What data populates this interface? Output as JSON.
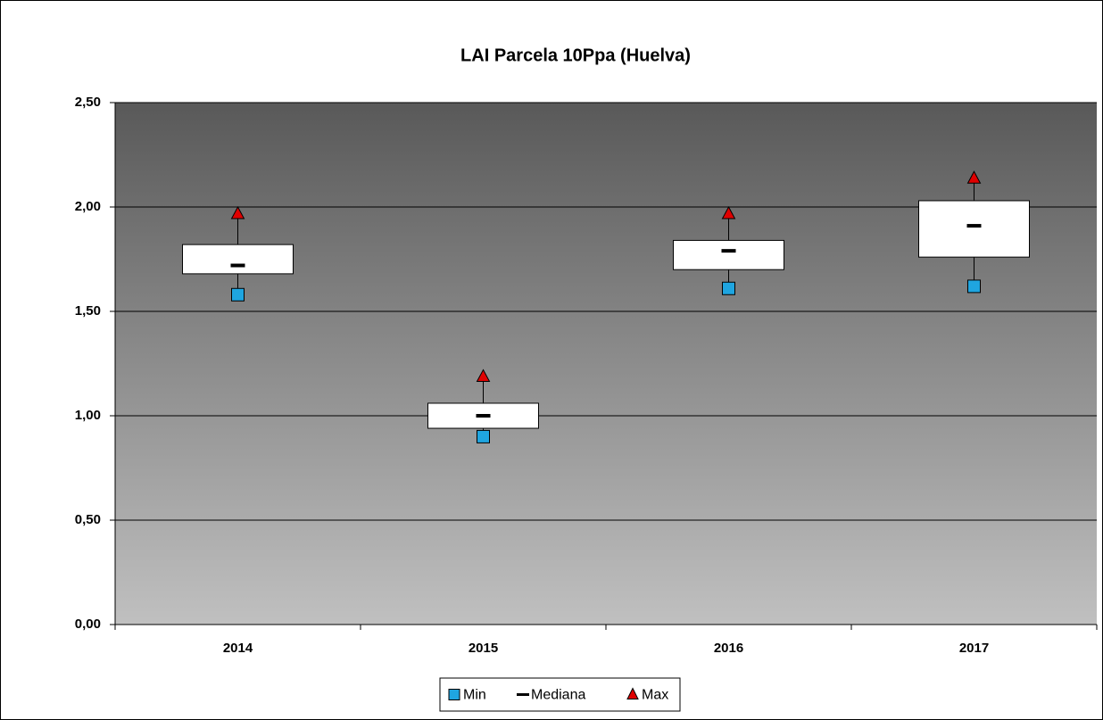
{
  "chart_data": {
    "type": "box",
    "title": "LAI Parcela 10Ppa (Huelva)",
    "categories": [
      "2014",
      "2015",
      "2016",
      "2017"
    ],
    "series": [
      {
        "name": "Min",
        "color": "#1fa5e0",
        "values": [
          1.58,
          0.9,
          1.61,
          1.62
        ]
      },
      {
        "name": "Mediana",
        "color": "#000000",
        "values": [
          1.72,
          1.0,
          1.79,
          1.91
        ]
      },
      {
        "name": "Max",
        "color": "#e00000",
        "values": [
          1.97,
          1.19,
          1.97,
          2.14
        ]
      }
    ],
    "q1": [
      1.68,
      0.94,
      1.7,
      1.76
    ],
    "q3": [
      1.82,
      1.06,
      1.84,
      2.03
    ],
    "ylim": [
      0,
      2.5
    ],
    "yticks": [
      {
        "value": 0,
        "label": "0,00"
      },
      {
        "value": 0.5,
        "label": "0,50"
      },
      {
        "value": 1,
        "label": "1,00"
      },
      {
        "value": 1.5,
        "label": "1,50"
      },
      {
        "value": 2,
        "label": "2,00"
      },
      {
        "value": 2.5,
        "label": "2,50"
      }
    ],
    "grid": true,
    "legend": "bottom"
  }
}
